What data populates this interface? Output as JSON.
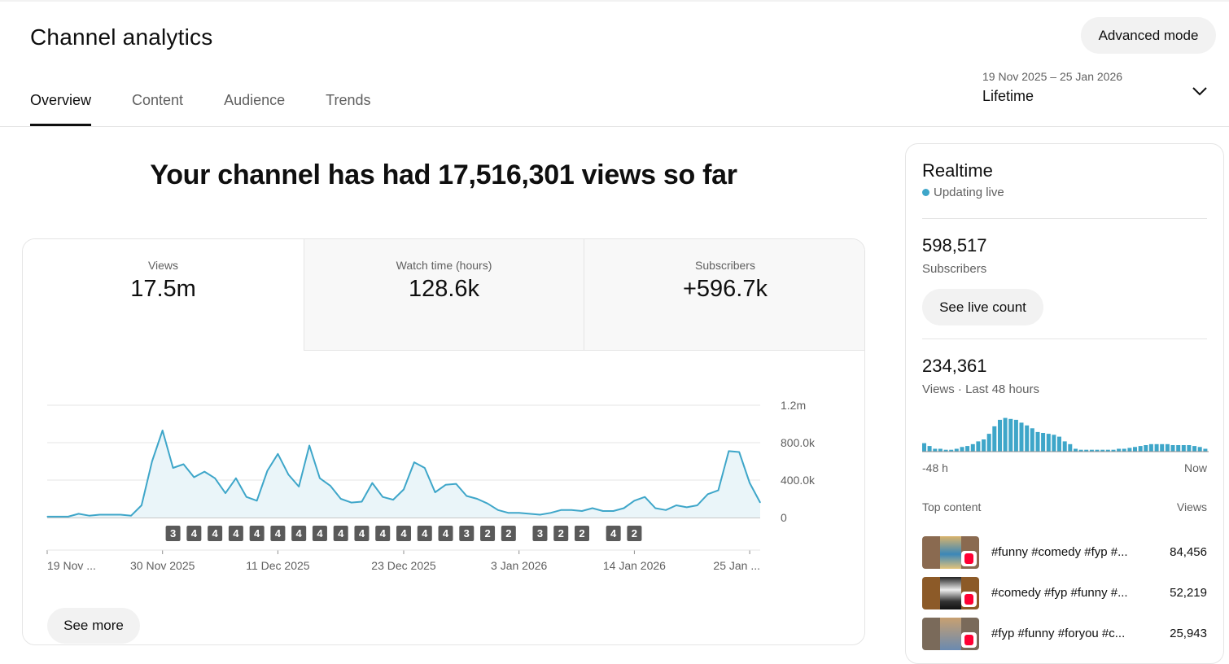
{
  "header": {
    "title": "Channel analytics",
    "advanced_mode": "Advanced mode",
    "tabs": [
      "Overview",
      "Content",
      "Audience",
      "Trends"
    ],
    "date_range": "19 Nov 2025 – 25 Jan 2026",
    "period": "Lifetime"
  },
  "headline": "Your channel has had 17,516,301 views so far",
  "metrics": [
    {
      "label": "Views",
      "value": "17.5m"
    },
    {
      "label": "Watch time (hours)",
      "value": "128.6k"
    },
    {
      "label": "Subscribers",
      "value": "+596.7k"
    }
  ],
  "see_more": "See more",
  "chart_data": {
    "type": "line",
    "series": [
      {
        "values": [
          10000,
          10000,
          10000,
          40000,
          20000,
          30000,
          30000,
          30000,
          20000,
          130000,
          600000,
          930000,
          530000,
          570000,
          430000,
          490000,
          420000,
          260000,
          420000,
          220000,
          180000,
          500000,
          680000,
          460000,
          330000,
          770000,
          420000,
          340000,
          200000,
          160000,
          170000,
          370000,
          220000,
          190000,
          300000,
          590000,
          530000,
          270000,
          350000,
          360000,
          230000,
          200000,
          150000,
          80000,
          50000,
          50000,
          40000,
          30000,
          50000,
          80000,
          80000,
          70000,
          100000,
          70000,
          70000,
          100000,
          180000,
          220000,
          100000,
          80000,
          130000,
          110000,
          130000,
          250000,
          290000,
          710000,
          700000,
          370000,
          160000
        ]
      }
    ],
    "x_ticks": [
      "19 Nov ...",
      "30 Nov 2025",
      "11 Dec 2025",
      "23 Dec 2025",
      "3 Jan 2026",
      "14 Jan 2026",
      "25 Jan ..."
    ],
    "y_ticks": [
      "1.2m",
      "800.0k",
      "400.0k",
      "0"
    ],
    "ylim": [
      0,
      1200000
    ],
    "markers": [
      {
        "day": 12,
        "label": "3"
      },
      {
        "day": 14,
        "label": "4"
      },
      {
        "day": 16,
        "label": "4"
      },
      {
        "day": 18,
        "label": "4"
      },
      {
        "day": 20,
        "label": "4"
      },
      {
        "day": 22,
        "label": "4"
      },
      {
        "day": 24,
        "label": "4"
      },
      {
        "day": 26,
        "label": "4"
      },
      {
        "day": 28,
        "label": "4"
      },
      {
        "day": 30,
        "label": "4"
      },
      {
        "day": 32,
        "label": "4"
      },
      {
        "day": 34,
        "label": "4"
      },
      {
        "day": 36,
        "label": "4"
      },
      {
        "day": 38,
        "label": "4"
      },
      {
        "day": 40,
        "label": "3"
      },
      {
        "day": 42,
        "label": "2"
      },
      {
        "day": 44,
        "label": "2"
      },
      {
        "day": 47,
        "label": "3"
      },
      {
        "day": 49,
        "label": "2"
      },
      {
        "day": 51,
        "label": "2"
      },
      {
        "day": 54,
        "label": "4"
      },
      {
        "day": 56,
        "label": "2"
      }
    ],
    "line_color": "#3ea6c9",
    "grid": true
  },
  "realtime": {
    "title": "Realtime",
    "status": "Updating live",
    "subscribers": "598,517",
    "subscribers_label": "Subscribers",
    "live_count_button": "See live count",
    "views": "234,361",
    "views_label": "Views · Last 48 hours",
    "axis_start": "-48 h",
    "axis_end": "Now",
    "hourly_views": [
      9,
      6,
      3,
      3,
      2,
      2,
      3,
      5,
      6,
      8,
      11,
      13,
      19,
      27,
      34,
      36,
      35,
      34,
      31,
      28,
      25,
      21,
      20,
      19,
      18,
      16,
      11,
      8,
      3,
      2,
      2,
      2,
      2,
      2,
      2,
      2,
      3,
      3,
      4,
      5,
      6,
      7,
      8,
      8,
      8,
      8,
      7,
      7,
      7,
      7,
      6,
      5,
      3
    ],
    "top_content_label": "Top content",
    "views_col_label": "Views",
    "top_content": [
      {
        "title": "#funny #comedy #fyp #...",
        "views": "84,456"
      },
      {
        "title": "#comedy #fyp #funny #...",
        "views": "52,219"
      },
      {
        "title": "#fyp #funny #foryou #c...",
        "views": "25,943"
      }
    ]
  }
}
